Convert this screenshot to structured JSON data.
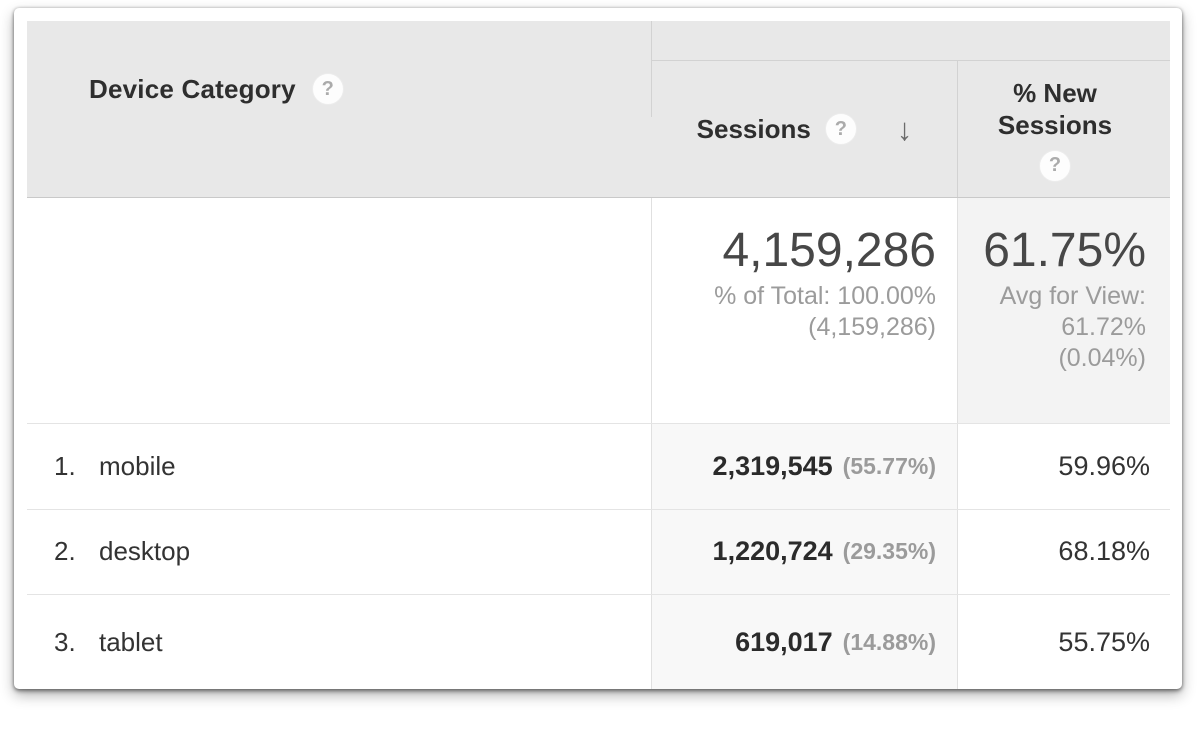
{
  "table": {
    "dimension_header": {
      "label": "Device Category"
    },
    "metric_headers": {
      "sessions": {
        "label": "Sessions",
        "sort": "descending"
      },
      "new_sessions": {
        "label": "% New\nSessions"
      }
    },
    "summary": {
      "sessions": {
        "value": "4,159,286",
        "sub_line1": "% of Total: 100.00%",
        "sub_line2": "(4,159,286)"
      },
      "new_sessions": {
        "value": "61.75%",
        "sub_line1": "Avg for View:",
        "sub_line2": "61.72%",
        "sub_line3": "(0.04%)"
      }
    },
    "rows": [
      {
        "index": "1.",
        "label": "mobile",
        "sessions": "2,319,545",
        "sessions_pct": "(55.77%)",
        "new_sessions": "59.96%"
      },
      {
        "index": "2.",
        "label": "desktop",
        "sessions": "1,220,724",
        "sessions_pct": "(29.35%)",
        "new_sessions": "68.18%"
      },
      {
        "index": "3.",
        "label": "tablet",
        "sessions": "619,017",
        "sessions_pct": "(14.88%)",
        "new_sessions": "55.75%"
      }
    ]
  },
  "icons": {
    "help": "?",
    "sort_descending": "↓"
  },
  "colors": {
    "header_bg": "#e8e8e8",
    "sorted_column_bg": "#f8f8f8",
    "summary_metric_bg": "#f3f3f3",
    "header_text": "#2e2e2e",
    "muted_text": "#9b9b9b"
  }
}
